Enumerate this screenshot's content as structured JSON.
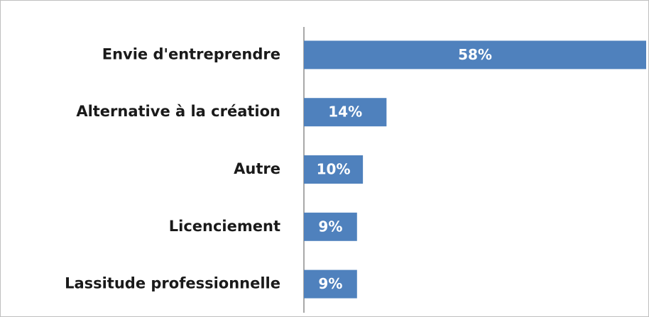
{
  "chart_data": {
    "type": "bar",
    "orientation": "horizontal",
    "categories": [
      "Envie d'entreprendre",
      "Alternative à la création",
      "Autre",
      "Licenciement",
      "Lassitude professionnelle"
    ],
    "values": [
      58,
      14,
      10,
      9,
      9
    ],
    "value_labels": [
      "58%",
      "14%",
      "10%",
      "9%",
      "9%"
    ],
    "color": "#4f81bd"
  }
}
